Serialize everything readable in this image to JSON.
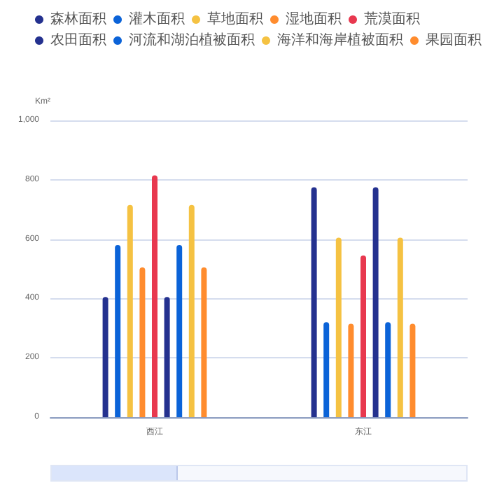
{
  "chart_data": {
    "type": "bar",
    "ylabel": "Km²",
    "categories": [
      "西江",
      "东江"
    ],
    "series": [
      {
        "name": "森林面积",
        "color": "#24318f",
        "values": [
          405,
          775
        ]
      },
      {
        "name": "灌木面积",
        "color": "#0b63d8",
        "values": [
          580,
          320
        ]
      },
      {
        "name": "草地面积",
        "color": "#f5c242",
        "values": [
          715,
          605
        ]
      },
      {
        "name": "湿地面积",
        "color": "#ff8c2e",
        "values": [
          505,
          315
        ]
      },
      {
        "name": "荒漠面积",
        "color": "#e8384f",
        "values": [
          815,
          545
        ]
      },
      {
        "name": "农田面积",
        "color": "#24318f",
        "values": [
          405,
          775
        ]
      },
      {
        "name": "河流和湖泊植被面积",
        "color": "#0b63d8",
        "values": [
          580,
          320
        ]
      },
      {
        "name": "海洋和海岸植被面积",
        "color": "#f5c242",
        "values": [
          715,
          605
        ]
      },
      {
        "name": "果园面积",
        "color": "#ff8c2e",
        "values": [
          505,
          315
        ]
      }
    ],
    "ylim": [
      0,
      1000
    ],
    "yticks": [
      0,
      200,
      400,
      600,
      800,
      {
        "value": 1000,
        "label": "1,000"
      }
    ],
    "grid": "y",
    "legend": "top"
  }
}
